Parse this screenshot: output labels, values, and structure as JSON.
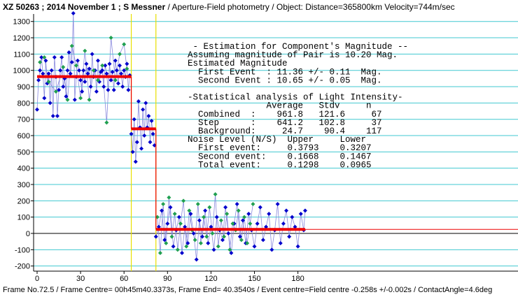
{
  "header": {
    "title_main": "XZ 50263 ; 2014 November 1 ; S Messner",
    "title_rest": " / Aperture-Field photometry /  Object: Distance=365800km Velocity=744m/sec"
  },
  "footer": {
    "text": "Frame No.72.5 / Frame Centre= 00h45m40.3373s, Frame End= 40.3540s / Event centre=Field centre -0.258s +/-0.002s / ContactAngle=4.6deg"
  },
  "report": {
    "lines": [
      " - Estimation for Component's Magnitude --",
      "Assuming magnitude of Pair is 10.20 Mag.",
      "Estimated Magnitude",
      "  First Event  : 11.36 +/- 0.11  Mag.",
      "  Second Event : 10.65 +/- 0.05  Mag.",
      "",
      "-Statistical analysis of Light Intensity-",
      "               Average   Stdv     n",
      "  Combined  :    961.8   121.6     67",
      "  Step      :    641.2   102.8     37",
      "  Background:     24.7    90.4    117",
      "Noise Level (N/S)  Upper     Lower",
      "  First event:     0.3793    0.3207",
      "  Second event:    0.1668    0.1467",
      "  Total event:     0.1298    0.0965"
    ]
  },
  "colors": {
    "grid": "#40c8d0",
    "series_blue": "#0000cc",
    "series_green": "#20a050",
    "connector": "#8888dd",
    "fit": "#ee0000",
    "event_marker": "#e8e000",
    "axis": "#000000"
  },
  "chart_data": {
    "type": "scatter",
    "xlim": [
      0,
      200
    ],
    "ylim": [
      -220,
      1380
    ],
    "xticks": [
      0,
      30,
      60,
      90,
      120,
      150,
      180
    ],
    "yticks": [
      -200,
      -100,
      0,
      100,
      200,
      300,
      400,
      500,
      600,
      700,
      800,
      900,
      1000,
      1100,
      1200,
      1300
    ],
    "grid": "horizontal",
    "event_lines": [
      65,
      82
    ],
    "levels": [
      {
        "name": "Combined",
        "from": 0,
        "to": 65,
        "value": 961.8
      },
      {
        "name": "Step",
        "from": 65,
        "to": 82,
        "value": 641.2
      },
      {
        "name": "Background",
        "from": 82,
        "to": 185,
        "value": 24.7
      }
    ],
    "series": [
      {
        "color": "blue",
        "points": [
          [
            0,
            760
          ],
          [
            1,
            940
          ],
          [
            2,
            1000
          ],
          [
            3,
            1080
          ],
          [
            4,
            980
          ],
          [
            5,
            830
          ],
          [
            6,
            1060
          ],
          [
            7,
            920
          ],
          [
            8,
            980
          ],
          [
            9,
            800
          ],
          [
            10,
            1000
          ],
          [
            11,
            720
          ],
          [
            12,
            1080
          ],
          [
            13,
            960
          ],
          [
            14,
            720
          ],
          [
            15,
            880
          ],
          [
            16,
            1000
          ],
          [
            17,
            1080
          ],
          [
            18,
            900
          ],
          [
            19,
            950
          ],
          [
            20,
            840
          ],
          [
            21,
            1000
          ],
          [
            22,
            1110
          ],
          [
            23,
            980
          ],
          [
            24,
            1050
          ],
          [
            25,
            1350
          ],
          [
            26,
            820
          ],
          [
            27,
            960
          ],
          [
            28,
            1060
          ],
          [
            29,
            1000
          ],
          [
            30,
            940
          ],
          [
            31,
            870
          ],
          [
            32,
            1000
          ],
          [
            33,
            930
          ],
          [
            34,
            1040
          ],
          [
            35,
            980
          ],
          [
            36,
            1010
          ],
          [
            37,
            900
          ],
          [
            38,
            1100
          ],
          [
            39,
            960
          ],
          [
            40,
            1000
          ],
          [
            41,
            870
          ],
          [
            42,
            1060
          ],
          [
            43,
            930
          ],
          [
            44,
            990
          ],
          [
            45,
            1000
          ],
          [
            46,
            900
          ],
          [
            47,
            1030
          ],
          [
            48,
            980
          ],
          [
            49,
            880
          ],
          [
            50,
            1040
          ],
          [
            51,
            940
          ],
          [
            52,
            990
          ],
          [
            53,
            880
          ],
          [
            54,
            1060
          ],
          [
            55,
            1000
          ],
          [
            56,
            920
          ],
          [
            57,
            1030
          ],
          [
            58,
            980
          ],
          [
            59,
            900
          ],
          [
            60,
            1000
          ],
          [
            61,
            960
          ],
          [
            62,
            1040
          ],
          [
            63,
            880
          ],
          [
            64,
            970
          ]
        ]
      },
      {
        "color": "green",
        "points": [
          [
            2,
            1050
          ],
          [
            5,
            1080
          ],
          [
            8,
            930
          ],
          [
            13,
            870
          ],
          [
            18,
            1020
          ],
          [
            21,
            820
          ],
          [
            24,
            1150
          ],
          [
            27,
            1030
          ],
          [
            30,
            830
          ],
          [
            33,
            1120
          ],
          [
            36,
            820
          ],
          [
            39,
            1000
          ],
          [
            42,
            940
          ],
          [
            45,
            1030
          ],
          [
            48,
            680
          ],
          [
            51,
            1200
          ],
          [
            54,
            940
          ],
          [
            57,
            1100
          ],
          [
            60,
            1160
          ],
          [
            62,
            1010
          ]
        ]
      },
      {
        "color": "blue",
        "points": [
          [
            65,
            610
          ],
          [
            66,
            500
          ],
          [
            67,
            700
          ],
          [
            68,
            440
          ],
          [
            69,
            560
          ],
          [
            70,
            810
          ],
          [
            71,
            650
          ],
          [
            72,
            520
          ],
          [
            73,
            760
          ],
          [
            74,
            600
          ],
          [
            75,
            800
          ],
          [
            76,
            650
          ],
          [
            77,
            720
          ],
          [
            78,
            560
          ],
          [
            79,
            690
          ],
          [
            80,
            610
          ],
          [
            81,
            540
          ]
        ]
      },
      {
        "color": "blue",
        "points": [
          [
            82,
            -20
          ],
          [
            84,
            40
          ],
          [
            86,
            140
          ],
          [
            88,
            -40
          ],
          [
            90,
            60
          ],
          [
            92,
            160
          ],
          [
            94,
            -80
          ],
          [
            96,
            20
          ],
          [
            98,
            100
          ],
          [
            100,
            -120
          ],
          [
            102,
            40
          ],
          [
            104,
            -60
          ],
          [
            106,
            120
          ],
          [
            108,
            0
          ],
          [
            110,
            -160
          ],
          [
            112,
            80
          ],
          [
            114,
            -20
          ],
          [
            116,
            140
          ],
          [
            118,
            -60
          ],
          [
            120,
            40
          ],
          [
            122,
            -100
          ],
          [
            124,
            100
          ],
          [
            126,
            20
          ],
          [
            128,
            -40
          ],
          [
            130,
            160
          ],
          [
            132,
            0
          ],
          [
            134,
            -120
          ],
          [
            136,
            60
          ],
          [
            138,
            180
          ],
          [
            140,
            -20
          ],
          [
            142,
            80
          ],
          [
            144,
            -60
          ],
          [
            146,
            120
          ],
          [
            148,
            20
          ],
          [
            150,
            -80
          ],
          [
            152,
            60
          ],
          [
            154,
            160
          ],
          [
            156,
            -40
          ],
          [
            158,
            40
          ],
          [
            160,
            120
          ],
          [
            162,
            -100
          ],
          [
            164,
            20
          ],
          [
            166,
            180
          ],
          [
            168,
            -60
          ],
          [
            170,
            60
          ],
          [
            172,
            140
          ],
          [
            174,
            -20
          ],
          [
            176,
            100
          ],
          [
            178,
            40
          ],
          [
            180,
            -80
          ],
          [
            182,
            120
          ],
          [
            184,
            20
          ],
          [
            185,
            140
          ]
        ]
      },
      {
        "color": "green",
        "points": [
          [
            83,
            100
          ],
          [
            85,
            -120
          ],
          [
            87,
            180
          ],
          [
            89,
            -60
          ],
          [
            91,
            220
          ],
          [
            93,
            -20
          ],
          [
            95,
            120
          ],
          [
            97,
            -100
          ],
          [
            99,
            60
          ],
          [
            101,
            200
          ],
          [
            103,
            -80
          ],
          [
            105,
            140
          ],
          [
            107,
            20
          ],
          [
            109,
            -40
          ],
          [
            111,
            180
          ],
          [
            113,
            -60
          ],
          [
            115,
            100
          ],
          [
            117,
            -20
          ],
          [
            119,
            160
          ],
          [
            121,
            0
          ],
          [
            123,
            240
          ],
          [
            125,
            -80
          ],
          [
            127,
            80
          ],
          [
            129,
            -20
          ],
          [
            131,
            120
          ],
          [
            133,
            -100
          ],
          [
            135,
            60
          ],
          [
            137,
            20
          ],
          [
            139,
            140
          ],
          [
            141,
            -40
          ],
          [
            143,
            100
          ],
          [
            145,
            -60
          ],
          [
            147,
            60
          ],
          [
            149,
            180
          ]
        ]
      }
    ]
  }
}
